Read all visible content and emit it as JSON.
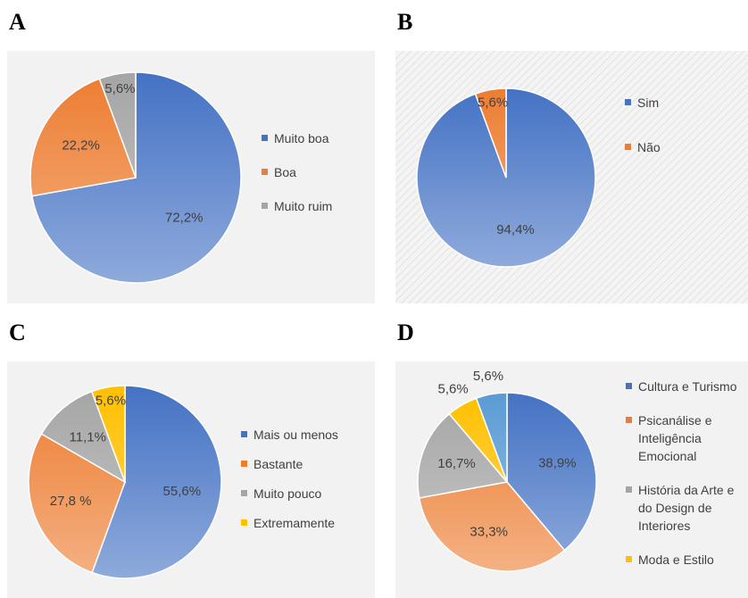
{
  "chart_data": [
    {
      "type": "pie",
      "panel": "A",
      "categories": [
        "Muito boa",
        "Boa",
        "Muito ruim"
      ],
      "values": [
        72.2,
        22.2,
        5.6
      ],
      "value_labels": [
        "72,2%",
        "22,2%",
        "5,6%"
      ],
      "colors": [
        "#4472c4",
        "#ed7d31",
        "#a5a5a5"
      ],
      "legend": "right"
    },
    {
      "type": "pie",
      "panel": "B",
      "categories": [
        "Sim",
        "Não"
      ],
      "values": [
        94.4,
        5.6
      ],
      "value_labels": [
        "94,4%",
        "5,6%"
      ],
      "colors": [
        "#4472c4",
        "#ed7d31"
      ],
      "legend": "right"
    },
    {
      "type": "pie",
      "panel": "C",
      "categories": [
        "Mais ou menos",
        "Bastante",
        "Muito pouco",
        "Extremamente"
      ],
      "values": [
        55.6,
        27.8,
        11.1,
        5.6
      ],
      "value_labels": [
        "55,6%",
        "27,8 %",
        "11,1%",
        "5,6%"
      ],
      "colors": [
        "#4472c4",
        "#ed7d31",
        "#a5a5a5",
        "#ffc000"
      ],
      "legend": "right"
    },
    {
      "type": "pie",
      "panel": "D",
      "categories": [
        "Cultura e Turismo",
        "Psicanálise e Inteligência Emocional",
        "História da Arte e do Design de Interiores",
        "Moda e Estilo",
        null
      ],
      "values": [
        38.9,
        33.3,
        16.7,
        5.6,
        5.6
      ],
      "value_labels": [
        "38,9%",
        "33,3%",
        "16,7%",
        "5,6%",
        "5,6%"
      ],
      "colors": [
        "#4472c4",
        "#ed7d31",
        "#a5a5a5",
        "#ffc000",
        "#5b9bd5"
      ],
      "legend": "right"
    }
  ]
}
